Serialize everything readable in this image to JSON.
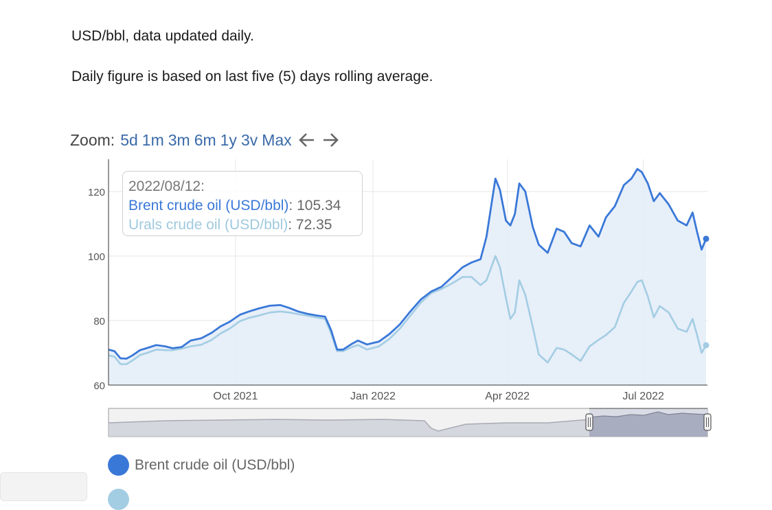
{
  "text": {
    "line1": "USD/bbl, data updated daily.",
    "line2": "Daily figure is based on last five (5) days rolling average."
  },
  "zoom": {
    "label": "Zoom:",
    "buttons": [
      "5d",
      "1m",
      "3m",
      "6m",
      "1y",
      "3v",
      "Max"
    ],
    "prev_icon": "left-arrow-icon",
    "next_icon": "right-arrow-icon"
  },
  "tooltip": {
    "date": "2022/08/12:",
    "brent_label": "Brent crude oil (USD/bbl)",
    "brent_value": "105.34",
    "urals_label": "Urals crude oil (USD/bbl)",
    "urals_value": "72.35"
  },
  "legend": {
    "brent": "Brent crude oil (USD/bbl)"
  },
  "chart_data": {
    "type": "area",
    "x_type": "date",
    "x_range": [
      "2021-07-08",
      "2022-08-12"
    ],
    "ylim": [
      60,
      130
    ],
    "y_ticks": [
      60,
      80,
      100,
      120
    ],
    "x_ticks": [
      {
        "date": "2021-10-01",
        "label": "Oct 2021"
      },
      {
        "date": "2022-01-01",
        "label": "Jan 2022"
      },
      {
        "date": "2022-04-01",
        "label": "Apr 2022"
      },
      {
        "date": "2022-07-01",
        "label": "Jul 2022"
      }
    ],
    "grid": true,
    "colors": {
      "brent": "#3a78d8",
      "urals": "#a3cde3",
      "area": "#e3ecf8"
    },
    "series": [
      {
        "name": "Brent crude oil (USD/bbl)",
        "points": [
          [
            "2021-07-08",
            71.0
          ],
          [
            "2021-07-12",
            70.5
          ],
          [
            "2021-07-16",
            68.3
          ],
          [
            "2021-07-20",
            68.2
          ],
          [
            "2021-07-24",
            69.2
          ],
          [
            "2021-07-29",
            70.8
          ],
          [
            "2021-08-03",
            71.5
          ],
          [
            "2021-08-09",
            72.4
          ],
          [
            "2021-08-15",
            72.0
          ],
          [
            "2021-08-20",
            71.4
          ],
          [
            "2021-08-26",
            71.8
          ],
          [
            "2021-09-01",
            73.8
          ],
          [
            "2021-09-08",
            74.5
          ],
          [
            "2021-09-15",
            76.2
          ],
          [
            "2021-09-21",
            78.2
          ],
          [
            "2021-09-27",
            79.6
          ],
          [
            "2021-10-04",
            81.8
          ],
          [
            "2021-10-10",
            82.8
          ],
          [
            "2021-10-17",
            83.8
          ],
          [
            "2021-10-24",
            84.6
          ],
          [
            "2021-10-31",
            84.8
          ],
          [
            "2021-11-06",
            83.9
          ],
          [
            "2021-11-12",
            82.8
          ],
          [
            "2021-11-18",
            82.1
          ],
          [
            "2021-11-24",
            81.6
          ],
          [
            "2021-11-30",
            81.2
          ],
          [
            "2021-12-04",
            77.0
          ],
          [
            "2021-12-08",
            71.0
          ],
          [
            "2021-12-12",
            71.0
          ],
          [
            "2021-12-18",
            72.8
          ],
          [
            "2021-12-22",
            73.8
          ],
          [
            "2021-12-28",
            72.6
          ],
          [
            "2022-01-05",
            73.5
          ],
          [
            "2022-01-12",
            75.8
          ],
          [
            "2022-01-19",
            78.8
          ],
          [
            "2022-01-26",
            82.8
          ],
          [
            "2022-02-02",
            86.5
          ],
          [
            "2022-02-09",
            89.0
          ],
          [
            "2022-02-16",
            90.5
          ],
          [
            "2022-02-23",
            93.5
          ],
          [
            "2022-03-02",
            96.5
          ],
          [
            "2022-03-08",
            98.0
          ],
          [
            "2022-03-14",
            99.0
          ],
          [
            "2022-03-18",
            106.0
          ],
          [
            "2022-03-24",
            124.0
          ],
          [
            "2022-03-27",
            120.5
          ],
          [
            "2022-03-31",
            111.0
          ],
          [
            "2022-04-03",
            109.5
          ],
          [
            "2022-04-06",
            113.0
          ],
          [
            "2022-04-09",
            122.5
          ],
          [
            "2022-04-13",
            120.0
          ],
          [
            "2022-04-18",
            109.0
          ],
          [
            "2022-04-22",
            103.5
          ],
          [
            "2022-04-28",
            101.0
          ],
          [
            "2022-05-04",
            108.5
          ],
          [
            "2022-05-09",
            107.5
          ],
          [
            "2022-05-14",
            104.0
          ],
          [
            "2022-05-20",
            103.0
          ],
          [
            "2022-05-26",
            109.5
          ],
          [
            "2022-06-01",
            106.0
          ],
          [
            "2022-06-06",
            112.0
          ],
          [
            "2022-06-12",
            115.5
          ],
          [
            "2022-06-18",
            122.0
          ],
          [
            "2022-06-23",
            124.0
          ],
          [
            "2022-06-27",
            127.0
          ],
          [
            "2022-06-30",
            126.0
          ],
          [
            "2022-07-04",
            122.5
          ],
          [
            "2022-07-08",
            117.0
          ],
          [
            "2022-07-12",
            119.5
          ],
          [
            "2022-07-18",
            116.0
          ],
          [
            "2022-07-24",
            111.0
          ],
          [
            "2022-07-30",
            109.5
          ],
          [
            "2022-08-03",
            113.5
          ],
          [
            "2022-08-06",
            107.5
          ],
          [
            "2022-08-09",
            102.0
          ],
          [
            "2022-08-12",
            105.34
          ]
        ]
      },
      {
        "name": "Urals crude oil (USD/bbl)",
        "points": [
          [
            "2021-07-08",
            69.2
          ],
          [
            "2021-07-12",
            68.8
          ],
          [
            "2021-07-16",
            66.5
          ],
          [
            "2021-07-20",
            66.5
          ],
          [
            "2021-07-24",
            67.6
          ],
          [
            "2021-07-29",
            69.3
          ],
          [
            "2021-08-03",
            70.0
          ],
          [
            "2021-08-09",
            71.0
          ],
          [
            "2021-08-15",
            70.8
          ],
          [
            "2021-08-20",
            70.8
          ],
          [
            "2021-08-26",
            71.3
          ],
          [
            "2021-09-01",
            72.0
          ],
          [
            "2021-09-08",
            72.5
          ],
          [
            "2021-09-15",
            74.0
          ],
          [
            "2021-09-21",
            76.0
          ],
          [
            "2021-09-27",
            77.5
          ],
          [
            "2021-10-04",
            79.8
          ],
          [
            "2021-10-10",
            80.8
          ],
          [
            "2021-10-17",
            81.6
          ],
          [
            "2021-10-24",
            82.5
          ],
          [
            "2021-10-31",
            82.8
          ],
          [
            "2021-11-06",
            82.5
          ],
          [
            "2021-11-12",
            82.0
          ],
          [
            "2021-11-18",
            81.5
          ],
          [
            "2021-11-24",
            81.0
          ],
          [
            "2021-11-30",
            80.5
          ],
          [
            "2021-12-04",
            76.0
          ],
          [
            "2021-12-08",
            70.5
          ],
          [
            "2021-12-12",
            70.5
          ],
          [
            "2021-12-18",
            71.8
          ],
          [
            "2021-12-22",
            72.4
          ],
          [
            "2021-12-28",
            71.0
          ],
          [
            "2022-01-05",
            72.0
          ],
          [
            "2022-01-12",
            74.3
          ],
          [
            "2022-01-19",
            77.5
          ],
          [
            "2022-01-26",
            81.5
          ],
          [
            "2022-02-02",
            85.5
          ],
          [
            "2022-02-09",
            88.5
          ],
          [
            "2022-02-16",
            89.8
          ],
          [
            "2022-02-23",
            91.5
          ],
          [
            "2022-03-02",
            93.5
          ],
          [
            "2022-03-08",
            93.5
          ],
          [
            "2022-03-14",
            91.0
          ],
          [
            "2022-03-18",
            92.5
          ],
          [
            "2022-03-24",
            100.0
          ],
          [
            "2022-03-27",
            96.5
          ],
          [
            "2022-03-31",
            87.0
          ],
          [
            "2022-04-03",
            80.5
          ],
          [
            "2022-04-06",
            82.5
          ],
          [
            "2022-04-09",
            92.5
          ],
          [
            "2022-04-13",
            88.0
          ],
          [
            "2022-04-18",
            78.0
          ],
          [
            "2022-04-22",
            69.5
          ],
          [
            "2022-04-28",
            67.0
          ],
          [
            "2022-05-04",
            71.5
          ],
          [
            "2022-05-09",
            71.0
          ],
          [
            "2022-05-14",
            69.5
          ],
          [
            "2022-05-20",
            67.5
          ],
          [
            "2022-05-26",
            72.0
          ],
          [
            "2022-06-01",
            74.0
          ],
          [
            "2022-06-06",
            75.5
          ],
          [
            "2022-06-12",
            78.0
          ],
          [
            "2022-06-18",
            85.5
          ],
          [
            "2022-06-23",
            89.0
          ],
          [
            "2022-06-27",
            92.0
          ],
          [
            "2022-06-30",
            92.5
          ],
          [
            "2022-07-04",
            87.5
          ],
          [
            "2022-07-08",
            81.0
          ],
          [
            "2022-07-12",
            84.5
          ],
          [
            "2022-07-18",
            82.5
          ],
          [
            "2022-07-24",
            77.5
          ],
          [
            "2022-07-30",
            76.5
          ],
          [
            "2022-08-03",
            80.5
          ],
          [
            "2022-08-06",
            75.5
          ],
          [
            "2022-08-09",
            70.0
          ],
          [
            "2022-08-12",
            72.35
          ]
        ]
      }
    ]
  }
}
